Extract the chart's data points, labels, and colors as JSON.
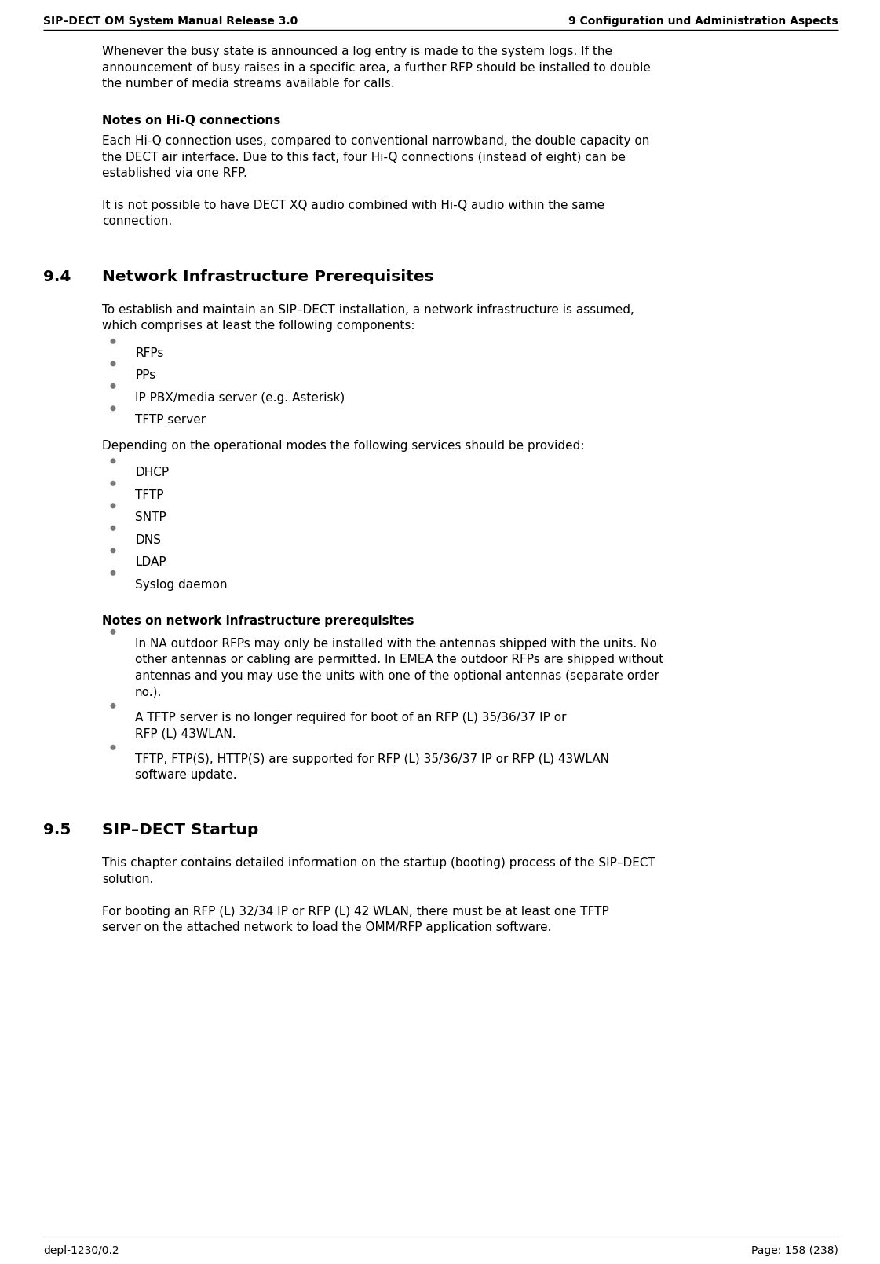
{
  "header_left": "SIP–DECT OM System Manual Release 3.0",
  "header_right": "9 Configuration und Administration Aspects",
  "footer_left": "depl-1230/0.2",
  "footer_right": "Page: 158 (238)",
  "bg": "#ffffff",
  "fg": "#000000",
  "bullet_color": "#888888",
  "figw": 11.21,
  "figh": 16.09,
  "dpi": 100
}
